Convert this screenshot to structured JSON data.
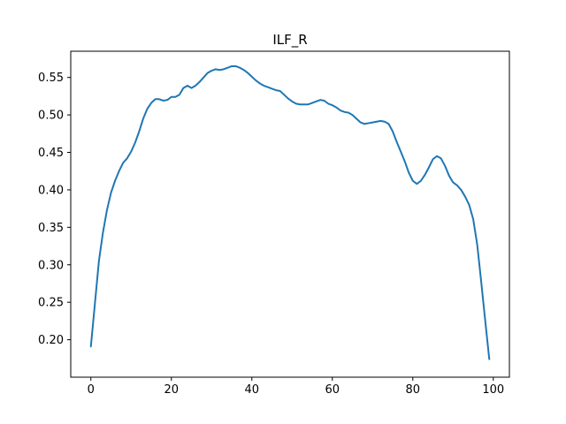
{
  "chart_data": {
    "type": "line",
    "title": "ILF_R",
    "xlabel": "",
    "ylabel": "",
    "xlim": [
      -5,
      104
    ],
    "ylim": [
      0.15,
      0.585
    ],
    "xticks": [
      0,
      20,
      40,
      60,
      80,
      100
    ],
    "yticks": [
      0.2,
      0.25,
      0.3,
      0.35,
      0.4,
      0.45,
      0.5,
      0.55
    ],
    "xtick_labels": [
      "0",
      "20",
      "40",
      "60",
      "80",
      "100"
    ],
    "ytick_labels": [
      "0.20",
      "0.25",
      "0.30",
      "0.35",
      "0.40",
      "0.45",
      "0.50",
      "0.55"
    ],
    "grid": false,
    "series": [
      {
        "color": "#1f77b4",
        "x": [
          0,
          1,
          2,
          3,
          4,
          5,
          6,
          7,
          8,
          9,
          10,
          11,
          12,
          13,
          14,
          15,
          16,
          17,
          18,
          19,
          20,
          21,
          22,
          23,
          24,
          25,
          26,
          27,
          28,
          29,
          30,
          31,
          32,
          33,
          34,
          35,
          36,
          37,
          38,
          39,
          40,
          41,
          42,
          43,
          44,
          45,
          46,
          47,
          48,
          49,
          50,
          51,
          52,
          53,
          54,
          55,
          56,
          57,
          58,
          59,
          60,
          61,
          62,
          63,
          64,
          65,
          66,
          67,
          68,
          69,
          70,
          71,
          72,
          73,
          74,
          75,
          76,
          77,
          78,
          79,
          80,
          81,
          82,
          83,
          84,
          85,
          86,
          87,
          88,
          89,
          90,
          91,
          92,
          93,
          94,
          95,
          96,
          97,
          98,
          99
        ],
        "y": [
          0.191,
          0.248,
          0.305,
          0.343,
          0.373,
          0.396,
          0.412,
          0.425,
          0.436,
          0.442,
          0.451,
          0.463,
          0.478,
          0.495,
          0.508,
          0.516,
          0.521,
          0.521,
          0.519,
          0.52,
          0.524,
          0.524,
          0.527,
          0.536,
          0.539,
          0.536,
          0.539,
          0.544,
          0.55,
          0.556,
          0.559,
          0.561,
          0.56,
          0.561,
          0.563,
          0.565,
          0.565,
          0.563,
          0.56,
          0.556,
          0.551,
          0.546,
          0.542,
          0.539,
          0.537,
          0.535,
          0.533,
          0.532,
          0.527,
          0.522,
          0.518,
          0.515,
          0.514,
          0.514,
          0.514,
          0.516,
          0.518,
          0.52,
          0.519,
          0.515,
          0.513,
          0.51,
          0.506,
          0.504,
          0.503,
          0.5,
          0.495,
          0.49,
          0.488,
          0.489,
          0.49,
          0.491,
          0.492,
          0.491,
          0.488,
          0.478,
          0.464,
          0.451,
          0.438,
          0.423,
          0.412,
          0.408,
          0.412,
          0.42,
          0.43,
          0.441,
          0.445,
          0.442,
          0.432,
          0.419,
          0.41,
          0.406,
          0.4,
          0.391,
          0.38,
          0.361,
          0.327,
          0.277,
          0.225,
          0.174
        ]
      }
    ]
  }
}
